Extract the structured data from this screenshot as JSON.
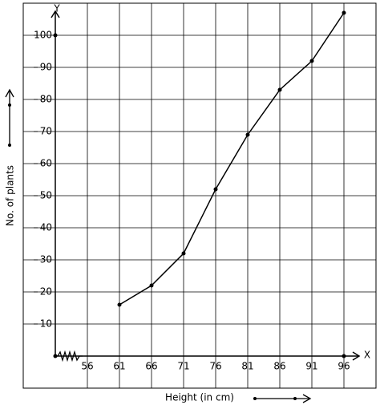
{
  "chart_data": {
    "type": "line",
    "x_label": "Height (in cm)",
    "y_label": "No. of plants",
    "x_axis_name": "X",
    "y_axis_name": "Y",
    "x": [
      61,
      66,
      71,
      76,
      81,
      86,
      91,
      96
    ],
    "values": [
      16,
      22,
      32,
      52,
      69,
      83,
      92,
      107
    ],
    "color": "#000000",
    "xlim": [
      51,
      101
    ],
    "ylim": [
      0,
      110
    ],
    "xticks": [
      56,
      61,
      66,
      71,
      76,
      81,
      86,
      91,
      96
    ],
    "yticks": [
      10,
      20,
      30,
      40,
      50,
      60,
      70,
      80,
      90,
      100
    ],
    "grid": true
  }
}
